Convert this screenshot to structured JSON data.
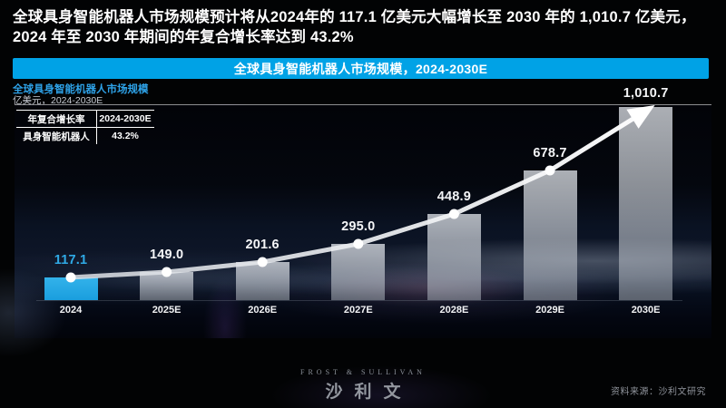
{
  "headline": {
    "line1": "全球具身智能机器人市场规模预计将从2024年的 117.1 亿美元大幅增长至 2030 年的 1,010.7 亿美元，",
    "line2": "2024 年至 2030 年期间的年复合增长率达到 43.2%"
  },
  "banner": {
    "title": "全球具身智能机器人市场规模，2024-2030E"
  },
  "chart_header": {
    "title": "全球具身智能机器人市场规模",
    "unit": "亿美元，2024-2030E"
  },
  "cagr_table": {
    "col1_header": "年复合增长率",
    "col2_header": "2024-2030E",
    "row_label": "具身智能机器人",
    "row_value": "43.2%"
  },
  "chart_data": {
    "type": "bar",
    "title": "全球具身智能机器人市场规模，2024-2030E",
    "ylabel": "亿美元",
    "categories": [
      "2024",
      "2025E",
      "2026E",
      "2027E",
      "2028E",
      "2029E",
      "2030E"
    ],
    "values": [
      117.1,
      149.0,
      201.6,
      295.0,
      448.9,
      678.7,
      1010.7
    ],
    "value_labels": [
      "117.1",
      "149.0",
      "201.6",
      "295.0",
      "448.9",
      "678.7",
      "1,010.7"
    ],
    "highlight_index": 0,
    "trendline": "white line with dots ending in arrow",
    "grid": false,
    "legend_position": "none",
    "ylim": [
      0,
      1010.7
    ]
  },
  "footer": {
    "brand_line1": "FROST & SULLIVAN",
    "brand_line2": "沙利文",
    "source": "资料来源：沙利文研究"
  },
  "colors": {
    "accent": "#00a2e6",
    "highlight_bar": "#29abe2",
    "highlight_label": "#2faae6",
    "gray_bar": "rgba(210,216,224,0.60)",
    "trend_line": "#f2f3f5",
    "subtitle_blue": "#2ea2e8"
  }
}
